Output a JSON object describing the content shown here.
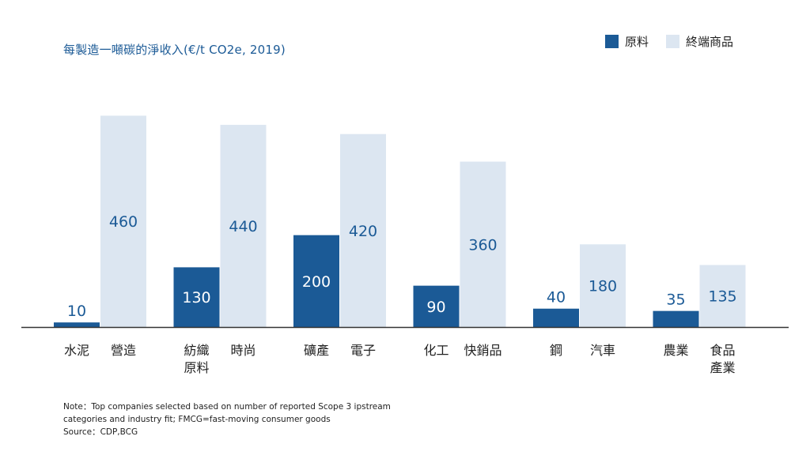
{
  "chart_data": {
    "type": "bar",
    "title": "每製造一噸碳的淨收入(€/t CO2e, 2019)",
    "xlabel": "",
    "ylabel": "",
    "ylim": [
      0,
      490
    ],
    "grid": false,
    "legend_position": "top-right",
    "colors": {
      "raw": "#1b5a96",
      "final": "#dce6f1",
      "baseline": "#333333",
      "label_dark": "#1b5a96",
      "label_light": "#ffffff"
    },
    "series": [
      {
        "name": "原料",
        "values": [
          10,
          130,
          200,
          90,
          40,
          35
        ]
      },
      {
        "name": "終端商品",
        "values": [
          460,
          440,
          420,
          360,
          180,
          135
        ]
      }
    ],
    "groups": [
      {
        "raw_label": [
          "水泥"
        ],
        "final_label": [
          "營造"
        ]
      },
      {
        "raw_label": [
          "紡織",
          "原料"
        ],
        "final_label": [
          "時尚"
        ]
      },
      {
        "raw_label": [
          "礦產"
        ],
        "final_label": [
          "電子"
        ]
      },
      {
        "raw_label": [
          "化工"
        ],
        "final_label": [
          "快銷品"
        ]
      },
      {
        "raw_label": [
          "鋼"
        ],
        "final_label": [
          "汽車"
        ]
      },
      {
        "raw_label": [
          "農業"
        ],
        "final_label": [
          "食品",
          "產業"
        ]
      }
    ]
  },
  "note": {
    "line1": "Note：Top companies selected based on number of reported Scope 3 ipstream",
    "line2": "categories and industry fit; FMCG=fast-moving consumer goods",
    "line3": "Source：CDP,BCG"
  }
}
